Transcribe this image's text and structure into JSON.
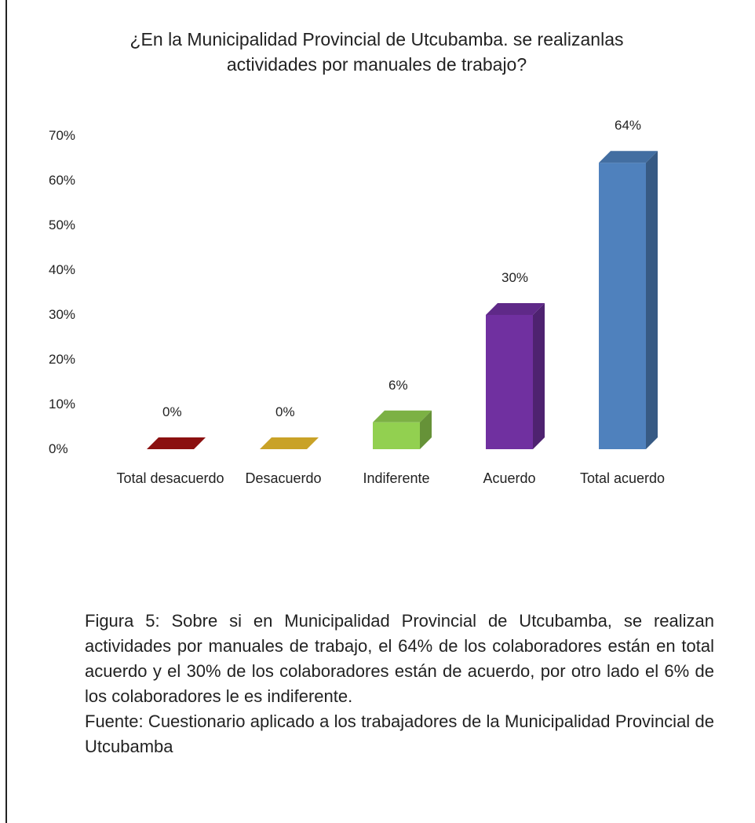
{
  "chart_data": {
    "type": "bar3d",
    "title": "¿En la Municipalidad Provincial de Utcubamba. se realizanlas actividades por manuales de trabajo?",
    "categories": [
      "Total desacuerdo",
      "Desacuerdo",
      "Indiferente",
      "Acuerdo",
      "Total acuerdo"
    ],
    "values": [
      0,
      0,
      6,
      30,
      64
    ],
    "value_labels": [
      "0%",
      "0%",
      "6%",
      "30%",
      "64%"
    ],
    "colors": [
      "#8b1010",
      "#c9a227",
      "#92d050",
      "#7030a0",
      "#4f81bd"
    ],
    "ylim": [
      0,
      70
    ],
    "yticks": [
      {
        "value": 0,
        "label": "0%"
      },
      {
        "value": 10,
        "label": "10%"
      },
      {
        "value": 20,
        "label": "20%"
      },
      {
        "value": 30,
        "label": "30%"
      },
      {
        "value": 40,
        "label": "40%"
      },
      {
        "value": 50,
        "label": "50%"
      },
      {
        "value": 60,
        "label": "60%"
      },
      {
        "value": 70,
        "label": "70%"
      }
    ]
  },
  "caption": {
    "figure": "Figura 5: Sobre si en Municipalidad Provincial de Utcubamba, se realizan actividades por manuales de trabajo, el 64% de los colaboradores están en total acuerdo y el 30% de los colaboradores están de acuerdo, por otro lado el 6% de los colaboradores le es indiferente.",
    "source": "Fuente: Cuestionario aplicado a los trabajadores de la Municipalidad Provincial de Utcubamba"
  }
}
